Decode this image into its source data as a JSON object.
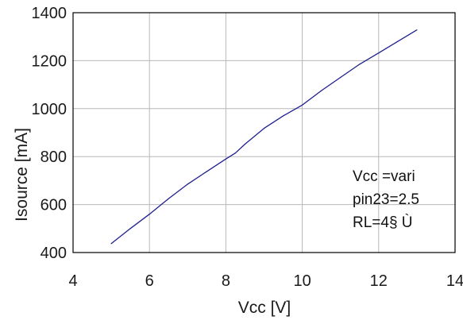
{
  "chart_data": {
    "type": "line",
    "title": "",
    "xlabel": "Vcc [V]",
    "ylabel": "Isource [mA]",
    "xlim": [
      4,
      14
    ],
    "ylim": [
      400,
      1400
    ],
    "xticks": [
      4,
      6,
      8,
      10,
      12,
      14
    ],
    "yticks": [
      400,
      600,
      800,
      1000,
      1200,
      1400
    ],
    "grid": true,
    "legend": "none",
    "series": [
      {
        "name": "",
        "color": "#1f1f8f",
        "x": [
          5,
          5.5,
          6,
          6.5,
          7,
          7.5,
          8,
          8.25,
          8.5,
          9,
          9.5,
          10,
          10.5,
          11,
          11.5,
          12,
          12.5,
          13
        ],
        "y": [
          437,
          500,
          560,
          625,
          685,
          738,
          790,
          815,
          852,
          918,
          970,
          1015,
          1075,
          1130,
          1185,
          1232,
          1280,
          1328
        ]
      }
    ],
    "annotations": [
      "Vcc =vari",
      "pin23=2.5",
      "RL=4§ Ù"
    ]
  },
  "colors": {
    "grid": "#b8b8b8",
    "axis": "#000000",
    "line": "#1f1f8f"
  }
}
